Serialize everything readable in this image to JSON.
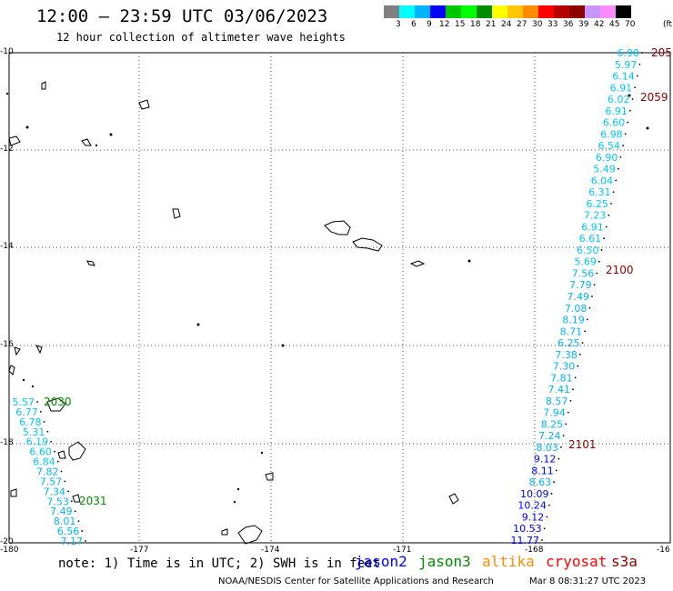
{
  "header": {
    "title": "12:00 — 23:59 UTC 03/06/2023",
    "subtitle": "12 hour collection of altimeter wave heights"
  },
  "legend": {
    "unit": "(ft)",
    "colors": [
      "#808080",
      "#00ffff",
      "#00b4ff",
      "#0000ff",
      "#00c800",
      "#00ff00",
      "#008c00",
      "#ffff00",
      "#ffc800",
      "#ff8c00",
      "#ff0000",
      "#b40000",
      "#8c0000",
      "#c896ff",
      "#ff8cff",
      "#000000"
    ],
    "labels": [
      "3",
      "6",
      "9",
      "12",
      "15",
      "18",
      "21",
      "24",
      "27",
      "30",
      "33",
      "36",
      "39",
      "42",
      "45",
      "70"
    ]
  },
  "axes": {
    "x_ticks": [
      "-180",
      "-177",
      "-174",
      "-171",
      "-168",
      "-16"
    ],
    "y_ticks": [
      "-10",
      "-12",
      "-14",
      "-16",
      "-18",
      "-20"
    ]
  },
  "tracks": {
    "east": {
      "values": [
        "6.90",
        "5.97",
        "6.14",
        "6.91",
        "6.02",
        "6.91",
        "6.60",
        "6.98",
        "6.54",
        "6.90",
        "5.49",
        "6.04",
        "6.31",
        "6.25",
        "7.23",
        "6.91",
        "6.61",
        "6.50",
        "5.69",
        "7.56",
        "7.79",
        "7.49",
        "7.08",
        "8.19",
        "8.71",
        "6.25",
        "7.38",
        "7.30",
        "7.81",
        "7.41",
        "8.57",
        "7.94",
        "8.25",
        "7.24",
        "8.03",
        "9.12",
        "8.11",
        "8.63",
        "10.09",
        "10.24",
        "9.12",
        "10.53",
        "11.77"
      ],
      "colors": [
        "#00c8ff",
        "#00c8ff",
        "#00c8ff",
        "#00c8ff",
        "#00c8ff",
        "#00c8ff",
        "#00c8ff",
        "#00c8ff",
        "#00c8ff",
        "#00c8ff",
        "#00c8ff",
        "#00c8ff",
        "#00c8ff",
        "#00c8ff",
        "#00c8ff",
        "#00c8ff",
        "#00c8ff",
        "#00c8ff",
        "#00c8ff",
        "#00b4ff",
        "#00b4ff",
        "#00b4ff",
        "#00b4ff",
        "#00b4ff",
        "#00b4ff",
        "#00b4ff",
        "#00b4ff",
        "#00b4ff",
        "#00b4ff",
        "#00b4ff",
        "#00b4ff",
        "#00b4ff",
        "#00b4ff",
        "#00b4ff",
        "#00b4ff",
        "#0000ff",
        "#0000ff",
        "#00b4ff",
        "#0000ff",
        "#0000ff",
        "#0000ff",
        "#0000ff",
        "#0000ff"
      ],
      "time_labels": [
        "205",
        "2059",
        "2100",
        "2101"
      ]
    },
    "west": {
      "values": [
        "5.57",
        "6.77",
        "6.78",
        "5.31",
        "6.19",
        "6.60",
        "6.84",
        "7.82",
        "7.57",
        "7.34",
        "7.53",
        "7.49",
        "8.01",
        "6.56",
        "7.17"
      ],
      "colors": [
        "#00c8ff",
        "#00c8ff",
        "#00c8ff",
        "#00c8ff",
        "#00c8ff",
        "#00c8ff",
        "#00c8ff",
        "#00b4ff",
        "#00b4ff",
        "#00b4ff",
        "#00b4ff",
        "#00b4ff",
        "#00b4ff",
        "#00b4ff",
        "#00b4ff"
      ],
      "time_labels": [
        "2030",
        "2031"
      ]
    }
  },
  "footer": {
    "note": "note: 1) Time is in UTC; 2) SWH is in feet",
    "satellites": [
      {
        "name": "jason2",
        "color": "#0000ff"
      },
      {
        "name": "jason3",
        "color": "#008c00"
      },
      {
        "name": "altika",
        "color": "#ff8c00"
      },
      {
        "name": "cryosat",
        "color": "#ff0000"
      },
      {
        "name": "s3a",
        "color": "#8c0000"
      }
    ],
    "credit": "NOAA/NESDIS Center for Satellite Applications and Research",
    "timestamp": "Mar  8 08:31:27 UTC 2023"
  }
}
